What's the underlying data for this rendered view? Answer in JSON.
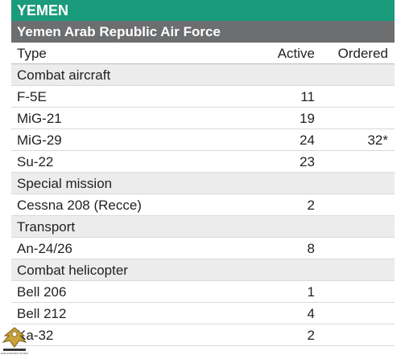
{
  "country": "YEMEN",
  "force": "Yemen Arab Republic Air Force",
  "columns": {
    "type": "Type",
    "active": "Active",
    "ordered": "Ordered"
  },
  "rows": [
    {
      "kind": "section",
      "type": "Combat aircraft"
    },
    {
      "kind": "item",
      "type": "F-5E",
      "active": "11",
      "ordered": ""
    },
    {
      "kind": "item",
      "type": "MiG-21",
      "active": "19",
      "ordered": ""
    },
    {
      "kind": "item",
      "type": "MiG-29",
      "active": "24",
      "ordered": "32*"
    },
    {
      "kind": "item",
      "type": "Su-22",
      "active": "23",
      "ordered": ""
    },
    {
      "kind": "section",
      "type": "Special mission"
    },
    {
      "kind": "item",
      "type": "Cessna 208 (Recce)",
      "active": "2",
      "ordered": ""
    },
    {
      "kind": "section",
      "type": "Transport"
    },
    {
      "kind": "item",
      "type": "An-24/26",
      "active": "8",
      "ordered": ""
    },
    {
      "kind": "section",
      "type": "Combat helicopter"
    },
    {
      "kind": "item",
      "type": "Bell 206",
      "active": "1",
      "ordered": ""
    },
    {
      "kind": "item",
      "type": "Bell 212",
      "active": "4",
      "ordered": ""
    },
    {
      "kind": "item",
      "type": "Ka-32",
      "active": "2",
      "ordered": ""
    }
  ],
  "watermark": {
    "text": "SAM HOFFMAN STUDIO",
    "icon": "eagle-logo-icon"
  },
  "colors": {
    "country_bar": "#1a9b7c",
    "force_bar": "#6d6e70",
    "section_bg": "#ececec"
  }
}
